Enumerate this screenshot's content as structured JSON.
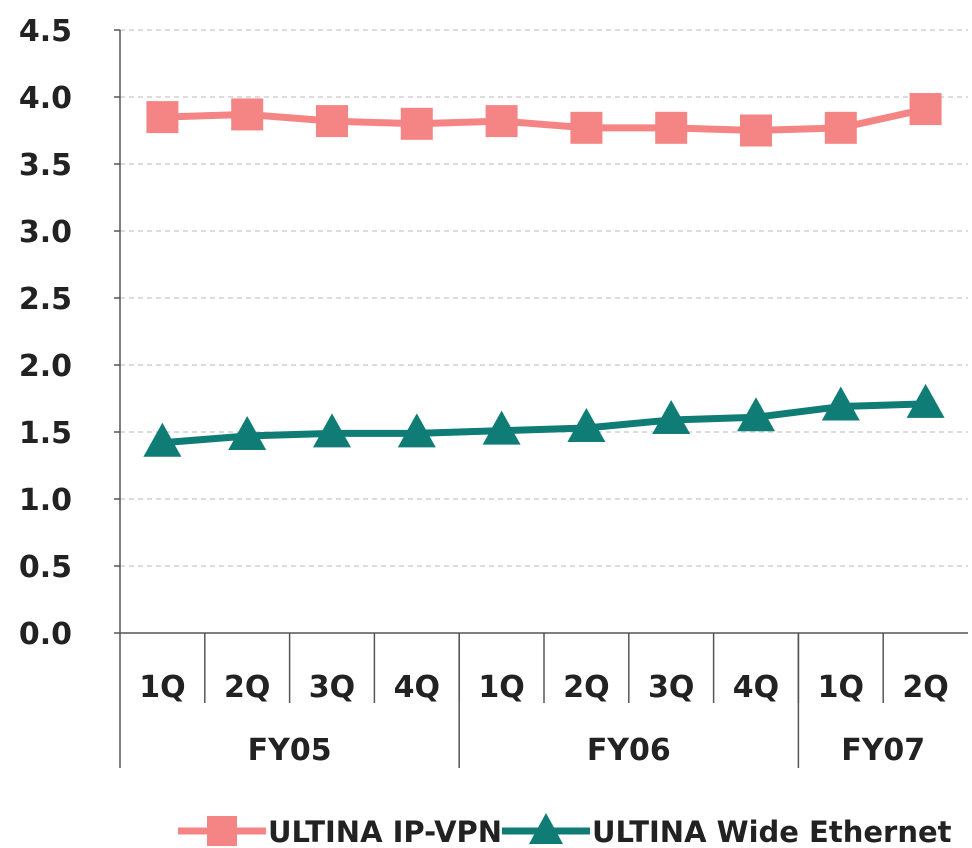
{
  "chart_data": {
    "type": "line",
    "title": "",
    "xlabel": "",
    "ylabel": "",
    "ylim": [
      0,
      4.5
    ],
    "y_ticks": [
      "0.0",
      "0.5",
      "1.0",
      "1.5",
      "2.0",
      "2.5",
      "3.0",
      "3.5",
      "4.0",
      "4.5"
    ],
    "grid": "horizontal dashed",
    "legend_position": "bottom",
    "categories": [
      "1Q",
      "2Q",
      "3Q",
      "4Q",
      "1Q",
      "2Q",
      "3Q",
      "4Q",
      "1Q",
      "2Q"
    ],
    "groups": [
      {
        "label": "FY05",
        "count": 4
      },
      {
        "label": "FY06",
        "count": 4
      },
      {
        "label": "FY07",
        "count": 2
      }
    ],
    "series": [
      {
        "name": "ULTINA IP-VPN",
        "color": "#f48584",
        "marker": "square",
        "values": [
          3.85,
          3.87,
          3.82,
          3.8,
          3.82,
          3.77,
          3.77,
          3.75,
          3.77,
          3.91
        ]
      },
      {
        "name": "ULTINA Wide Ethernet",
        "color": "#0f7c76",
        "marker": "triangle",
        "values": [
          1.42,
          1.47,
          1.49,
          1.49,
          1.51,
          1.53,
          1.59,
          1.61,
          1.69,
          1.71
        ]
      }
    ]
  }
}
